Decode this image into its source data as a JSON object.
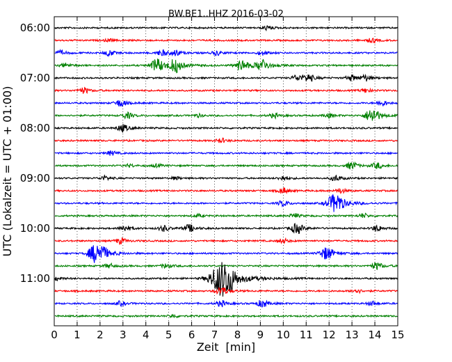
{
  "chart_data": {
    "type": "line",
    "title": "BW.BE1..HHZ 2016-03-02",
    "xlabel": "Zeit  [min]",
    "ylabel": "UTC (Lokalzeit = UTC + 01:00)",
    "xlim": [
      0,
      15
    ],
    "x_ticks": [
      0,
      1,
      2,
      3,
      4,
      5,
      6,
      7,
      8,
      9,
      10,
      11,
      12,
      13,
      14,
      15
    ],
    "y_tick_labels": [
      "06:00",
      "07:00",
      "08:00",
      "09:00",
      "10:00",
      "11:00"
    ],
    "grid": "vertical dotted at each minute",
    "rows_per_hour": 4,
    "row_minutes": 15,
    "colors": [
      "#000000",
      "#ff0000",
      "#0000ff",
      "#008000"
    ],
    "series": [
      {
        "start": "06:00",
        "color": "black",
        "events": [
          {
            "x": 9.3,
            "amp": 0.3
          }
        ]
      },
      {
        "start": "06:15",
        "color": "red",
        "events": [
          {
            "x": 2.4,
            "amp": 0.2
          },
          {
            "x": 13.9,
            "amp": 0.3
          }
        ]
      },
      {
        "start": "06:30",
        "color": "blue",
        "events": [
          {
            "x": 0.3,
            "amp": 0.3
          },
          {
            "x": 2.4,
            "amp": 0.4
          },
          {
            "x": 4.7,
            "amp": 0.4
          },
          {
            "x": 5.3,
            "amp": 0.4
          },
          {
            "x": 7.1,
            "amp": 0.3
          },
          {
            "x": 9.1,
            "amp": 0.3
          }
        ]
      },
      {
        "start": "06:45",
        "color": "green",
        "events": [
          {
            "x": 0.5,
            "amp": 0.3
          },
          {
            "x": 4.5,
            "amp": 0.9
          },
          {
            "x": 5.3,
            "amp": 0.9
          },
          {
            "x": 8.2,
            "amp": 0.8
          },
          {
            "x": 9.1,
            "amp": 0.8
          }
        ]
      },
      {
        "start": "07:00",
        "color": "black",
        "events": [
          {
            "x": 10.6,
            "amp": 0.4
          },
          {
            "x": 11.1,
            "amp": 0.5
          },
          {
            "x": 13.0,
            "amp": 0.4
          },
          {
            "x": 13.6,
            "amp": 0.4
          }
        ]
      },
      {
        "start": "07:15",
        "color": "red",
        "events": [
          {
            "x": 1.3,
            "amp": 0.4
          },
          {
            "x": 13.6,
            "amp": 0.3
          }
        ]
      },
      {
        "start": "07:30",
        "color": "blue",
        "events": [
          {
            "x": 2.9,
            "amp": 0.5
          },
          {
            "x": 14.3,
            "amp": 0.4
          }
        ]
      },
      {
        "start": "07:45",
        "color": "green",
        "events": [
          {
            "x": 3.2,
            "amp": 0.4
          },
          {
            "x": 6.3,
            "amp": 0.2
          },
          {
            "x": 9.6,
            "amp": 0.3
          },
          {
            "x": 12.0,
            "amp": 0.3
          },
          {
            "x": 13.9,
            "amp": 1.0
          }
        ]
      },
      {
        "start": "08:00",
        "color": "black",
        "events": [
          {
            "x": 3.0,
            "amp": 0.5
          }
        ]
      },
      {
        "start": "08:15",
        "color": "red",
        "events": [
          {
            "x": 7.3,
            "amp": 0.3
          }
        ]
      },
      {
        "start": "08:30",
        "color": "blue",
        "events": [
          {
            "x": 2.5,
            "amp": 0.3
          }
        ]
      },
      {
        "start": "08:45",
        "color": "green",
        "events": [
          {
            "x": 3.3,
            "amp": 0.2
          },
          {
            "x": 4.5,
            "amp": 0.2
          },
          {
            "x": 13.0,
            "amp": 0.5
          },
          {
            "x": 14.1,
            "amp": 0.4
          }
        ]
      },
      {
        "start": "09:00",
        "color": "black",
        "events": [
          {
            "x": 2.2,
            "amp": 0.3
          },
          {
            "x": 5.3,
            "amp": 0.2
          },
          {
            "x": 10.0,
            "amp": 0.3
          },
          {
            "x": 12.3,
            "amp": 0.4
          }
        ]
      },
      {
        "start": "09:15",
        "color": "red",
        "events": [
          {
            "x": 10.0,
            "amp": 0.4
          },
          {
            "x": 12.5,
            "amp": 0.3
          }
        ]
      },
      {
        "start": "09:30",
        "color": "blue",
        "events": [
          {
            "x": 10.0,
            "amp": 0.4
          },
          {
            "x": 12.3,
            "amp": 1.4
          }
        ]
      },
      {
        "start": "09:45",
        "color": "green",
        "events": [
          {
            "x": 6.3,
            "amp": 0.2
          },
          {
            "x": 10.5,
            "amp": 0.3
          },
          {
            "x": 13.5,
            "amp": 0.3
          }
        ]
      },
      {
        "start": "10:00",
        "color": "black",
        "events": [
          {
            "x": 3.1,
            "amp": 0.4
          },
          {
            "x": 4.8,
            "amp": 0.4
          },
          {
            "x": 5.9,
            "amp": 0.5
          },
          {
            "x": 10.6,
            "amp": 0.7
          },
          {
            "x": 14.1,
            "amp": 0.4
          }
        ]
      },
      {
        "start": "10:15",
        "color": "red",
        "events": [
          {
            "x": 2.9,
            "amp": 0.4
          },
          {
            "x": 10.0,
            "amp": 0.3
          }
        ]
      },
      {
        "start": "10:30",
        "color": "blue",
        "events": [
          {
            "x": 1.7,
            "amp": 0.6
          },
          {
            "x": 2.0,
            "amp": 1.2
          },
          {
            "x": 11.9,
            "amp": 0.9
          }
        ]
      },
      {
        "start": "10:45",
        "color": "green",
        "events": [
          {
            "x": 2.4,
            "amp": 0.3
          },
          {
            "x": 4.9,
            "amp": 0.3
          },
          {
            "x": 14.1,
            "amp": 0.5
          }
        ]
      },
      {
        "start": "11:00",
        "color": "black",
        "events": [
          {
            "x": 0.1,
            "amp": 0.3
          },
          {
            "x": 7.4,
            "amp": 2.6
          }
        ]
      },
      {
        "start": "11:15",
        "color": "red",
        "events": [
          {
            "x": 7.3,
            "amp": 0.6
          },
          {
            "x": 13.2,
            "amp": 0.3
          }
        ]
      },
      {
        "start": "11:30",
        "color": "blue",
        "events": [
          {
            "x": 2.9,
            "amp": 0.3
          },
          {
            "x": 7.3,
            "amp": 0.4
          },
          {
            "x": 9.1,
            "amp": 0.5
          },
          {
            "x": 13.9,
            "amp": 0.3
          }
        ]
      },
      {
        "start": "11:45",
        "color": "green",
        "events": [
          {
            "x": 5.2,
            "amp": 0.2
          }
        ]
      }
    ]
  }
}
